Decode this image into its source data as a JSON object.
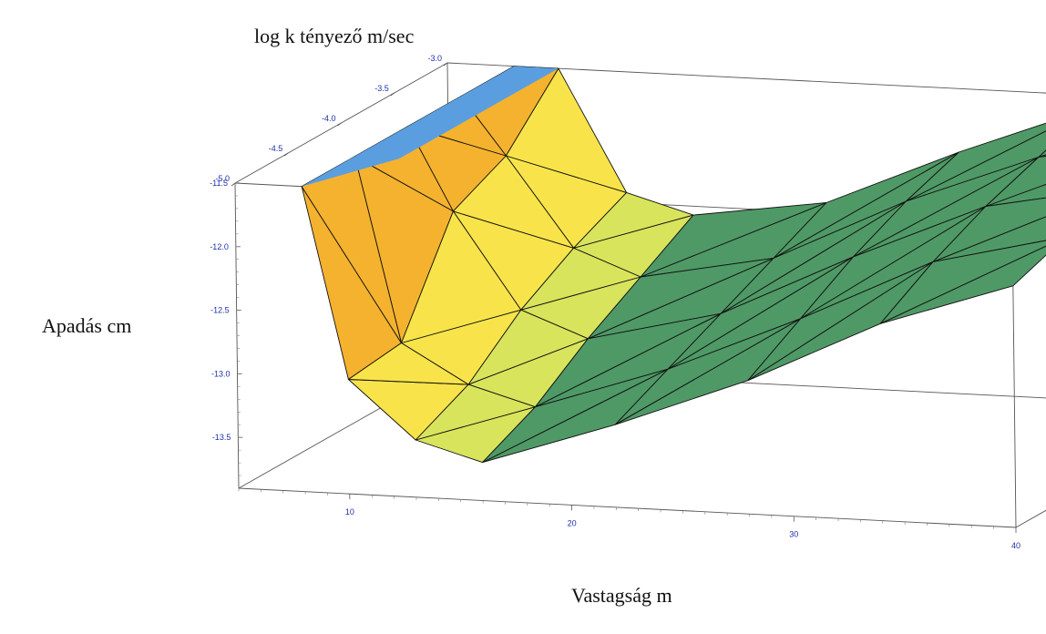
{
  "chart_data": {
    "type": "surface3d",
    "title": "",
    "xlabel": "Vastagság m",
    "ylabel": "log k tényező m/sec",
    "zlabel": "Apadás cm",
    "x_ticks": [
      "10",
      "20",
      "30",
      "40"
    ],
    "y_ticks": [
      "-5.0",
      "-4.5",
      "-4.0",
      "-3.5",
      "-3.0"
    ],
    "z_ticks": [
      "-11.5",
      "-12.0",
      "-12.5",
      "-13.0",
      "-13.5"
    ],
    "xlim": [
      5,
      40
    ],
    "ylim": [
      -5.0,
      -3.0
    ],
    "zlim": [
      -13.9,
      -11.5
    ],
    "surface_x": [
      8,
      10,
      13,
      16,
      22,
      28,
      34,
      40
    ],
    "surface_y": [
      -5.0,
      -4.5,
      -4.0,
      -3.5,
      -3.0
    ],
    "surface_z": [
      [
        -11.5,
        -11.5,
        -11.5,
        -11.5,
        -11.5
      ],
      [
        -13.0,
        -12.95,
        -12.15,
        -11.95,
        -11.5
      ],
      [
        -13.45,
        -13.25,
        -12.9,
        -12.65,
        -12.45
      ],
      [
        -13.6,
        -13.4,
        -13.1,
        -12.85,
        -12.6
      ],
      [
        -13.25,
        -13.05,
        -12.85,
        -12.65,
        -12.45
      ],
      [
        -12.85,
        -12.6,
        -12.35,
        -12.15,
        -12.0
      ],
      [
        -12.35,
        -12.1,
        -11.9,
        -11.75,
        -11.6
      ],
      [
        -12.0,
        -11.85,
        -11.7,
        -11.55,
        -11.45
      ]
    ],
    "colors": {
      "high": "#f0a020",
      "mid": "#f8ec4a",
      "low": "#4e9a63",
      "overflow": "#5a9ee0",
      "axis_tick_labels": "#1f2fa8"
    }
  }
}
